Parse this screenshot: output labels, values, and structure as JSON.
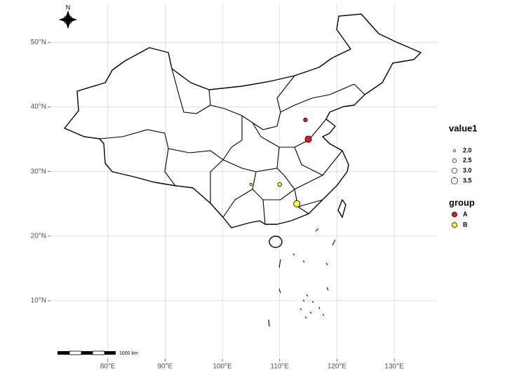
{
  "north_label": "N",
  "scale_bar_label": "1000 km",
  "chart_data": {
    "type": "scatter",
    "xlim": [
      70,
      137.7
    ],
    "ylim": [
      1,
      56
    ],
    "xticks": [
      {
        "value": 80,
        "label": "80°E"
      },
      {
        "value": 90,
        "label": "90°E"
      },
      {
        "value": 100,
        "label": "100°E"
      },
      {
        "value": 110,
        "label": "110°E"
      },
      {
        "value": 120,
        "label": "120°E"
      },
      {
        "value": 130,
        "label": "130°E"
      }
    ],
    "yticks": [
      {
        "value": 10,
        "label": "10°N"
      },
      {
        "value": 20,
        "label": "20°N"
      },
      {
        "value": 30,
        "label": "30°N"
      },
      {
        "value": 40,
        "label": "40°N"
      },
      {
        "value": 50,
        "label": "50°N"
      }
    ],
    "grid": true,
    "size_legend_title": "value1",
    "size_ticks": [
      {
        "value": 2,
        "label": "2.0"
      },
      2.5,
      {
        "value": 3,
        "label": "3.0"
      },
      3.5
    ],
    "color_legend_title": "group",
    "series": [
      {
        "name": "A",
        "color": "#e31a1c",
        "x": [
          114.5,
          115
        ],
        "values": [
          38,
          35
        ],
        "sizes": [
          2.5,
          3.5
        ]
      },
      {
        "name": "B",
        "color": "#ffff33",
        "x": [
          105,
          110,
          113
        ],
        "values": [
          28,
          28,
          25
        ],
        "sizes": [
          2,
          2.5,
          3.5
        ]
      }
    ]
  }
}
